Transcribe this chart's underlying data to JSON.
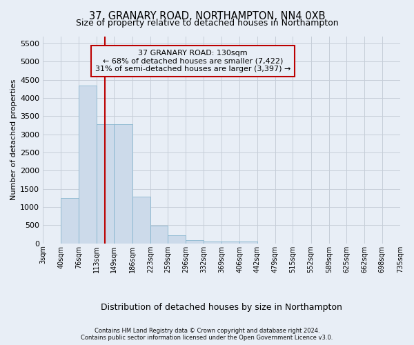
{
  "title1": "37, GRANARY ROAD, NORTHAMPTON, NN4 0XB",
  "title2": "Size of property relative to detached houses in Northampton",
  "xlabel": "Distribution of detached houses by size in Northampton",
  "ylabel": "Number of detached properties",
  "footnote1": "Contains HM Land Registry data © Crown copyright and database right 2024.",
  "footnote2": "Contains public sector information licensed under the Open Government Licence v3.0.",
  "bar_color": "#ccdaea",
  "bar_edge_color": "#7aafc9",
  "grid_color": "#c5cdd8",
  "background_color": "#e8eef6",
  "vline_x": 130,
  "vline_color": "#bb0000",
  "annotation_box_edgecolor": "#bb0000",
  "annotation_line1": "37 GRANARY ROAD: 130sqm",
  "annotation_line2": "← 68% of detached houses are smaller (7,422)",
  "annotation_line3": "31% of semi-detached houses are larger (3,397) →",
  "bin_edges": [
    3,
    40,
    76,
    113,
    149,
    186,
    223,
    259,
    296,
    332,
    369,
    406,
    442,
    479,
    515,
    552,
    589,
    625,
    662,
    698,
    735
  ],
  "bin_labels": [
    "3sqm",
    "40sqm",
    "76sqm",
    "113sqm",
    "149sqm",
    "186sqm",
    "223sqm",
    "259sqm",
    "296sqm",
    "332sqm",
    "369sqm",
    "406sqm",
    "442sqm",
    "479sqm",
    "515sqm",
    "552sqm",
    "589sqm",
    "625sqm",
    "662sqm",
    "698sqm",
    "735sqm"
  ],
  "bar_heights": [
    0,
    1250,
    4350,
    3280,
    3280,
    1280,
    480,
    215,
    82,
    60,
    52,
    52,
    0,
    0,
    0,
    0,
    0,
    0,
    0,
    0
  ],
  "ylim_max": 5700,
  "yticks": [
    0,
    500,
    1000,
    1500,
    2000,
    2500,
    3000,
    3500,
    4000,
    4500,
    5000,
    5500
  ],
  "title1_fontsize": 10.5,
  "title2_fontsize": 9,
  "xlabel_fontsize": 9,
  "ylabel_fontsize": 8,
  "ytick_fontsize": 8,
  "xtick_fontsize": 7,
  "annotation_fontsize": 8,
  "footnote_fontsize": 6
}
